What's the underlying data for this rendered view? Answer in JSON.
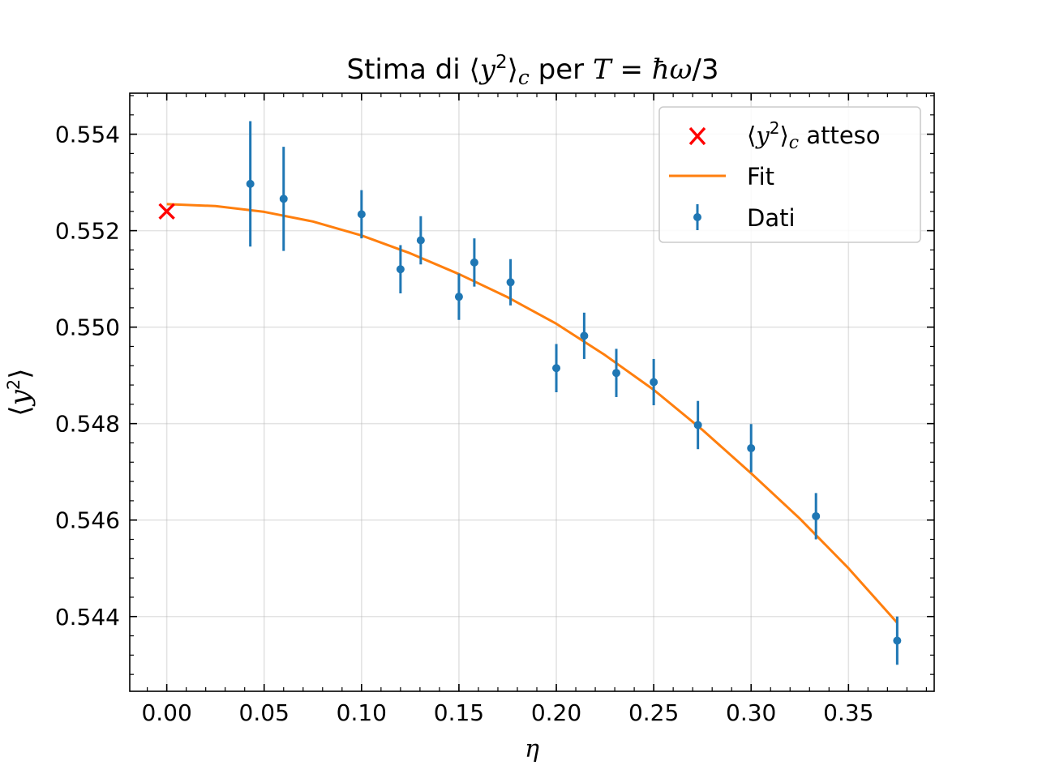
{
  "chart_data": {
    "type": "scatter",
    "title": {
      "prefix": "Stima di ",
      "left_angle": "⟨",
      "var": "y",
      "sup": "2",
      "right_angle": "⟩",
      "sub": "c",
      "middle": " per ",
      "T": "T",
      "equals": " = ",
      "hbar": "ħω",
      "rest": "/3"
    },
    "xlabel": "η",
    "ylabel": {
      "left_angle": "⟨",
      "var": "y",
      "sup": "2",
      "right_angle": "⟩"
    },
    "xlim": [
      -0.019,
      0.394
    ],
    "ylim": [
      0.54245,
      0.55485
    ],
    "x_ticks": [
      0.0,
      0.05,
      0.1,
      0.15,
      0.2,
      0.25,
      0.3,
      0.35
    ],
    "x_tick_labels": [
      "0.00",
      "0.05",
      "0.10",
      "0.15",
      "0.20",
      "0.25",
      "0.30",
      "0.35"
    ],
    "y_ticks": [
      0.544,
      0.546,
      0.548,
      0.55,
      0.552,
      0.554
    ],
    "y_tick_labels": [
      "0.544",
      "0.546",
      "0.548",
      "0.550",
      "0.552",
      "0.554"
    ],
    "y_minor_step": 0.0004,
    "x_minor_step": 0.01,
    "grid": true,
    "legend_position": "top-right",
    "legend": {
      "expected": {
        "left_angle": "⟨",
        "var": "y",
        "sup": "2",
        "right_angle": "⟩",
        "sub": "c",
        "suffix": " atteso"
      },
      "fit": "Fit",
      "data": "Dati"
    },
    "series": [
      {
        "name": "Dati",
        "kind": "errorbar",
        "color": "#1f77b4",
        "x": [
          0.0429,
          0.06,
          0.1,
          0.12,
          0.1304,
          0.15,
          0.1579,
          0.1765,
          0.2,
          0.2143,
          0.2308,
          0.25,
          0.2727,
          0.3,
          0.3333,
          0.375
        ],
        "y": [
          0.55297,
          0.55266,
          0.55234,
          0.5512,
          0.5518,
          0.55063,
          0.55134,
          0.55093,
          0.54915,
          0.54982,
          0.54905,
          0.54886,
          0.54797,
          0.54749,
          0.54608,
          0.5435
        ],
        "yerr": [
          0.0013,
          0.00108,
          0.0005,
          0.0005,
          0.0005,
          0.00048,
          0.0005,
          0.00048,
          0.0005,
          0.00048,
          0.0005,
          0.00048,
          0.0005,
          0.0005,
          0.00048,
          0.0005
        ]
      },
      {
        "name": "Fit",
        "kind": "line",
        "color": "#ff7f0e",
        "x": [
          0.0,
          0.025,
          0.05,
          0.075,
          0.1,
          0.125,
          0.15,
          0.175,
          0.2,
          0.225,
          0.25,
          0.275,
          0.3,
          0.325,
          0.35,
          0.375
        ],
        "y": [
          0.55255,
          0.55251,
          0.55239,
          0.55219,
          0.5519,
          0.55153,
          0.5511,
          0.55062,
          0.55007,
          0.54942,
          0.5487,
          0.54787,
          0.54697,
          0.54603,
          0.545,
          0.54387
        ]
      },
      {
        "name": "atteso",
        "kind": "marker",
        "color": "#ff0000",
        "x": [
          0.0
        ],
        "y": [
          0.5524
        ]
      }
    ]
  }
}
